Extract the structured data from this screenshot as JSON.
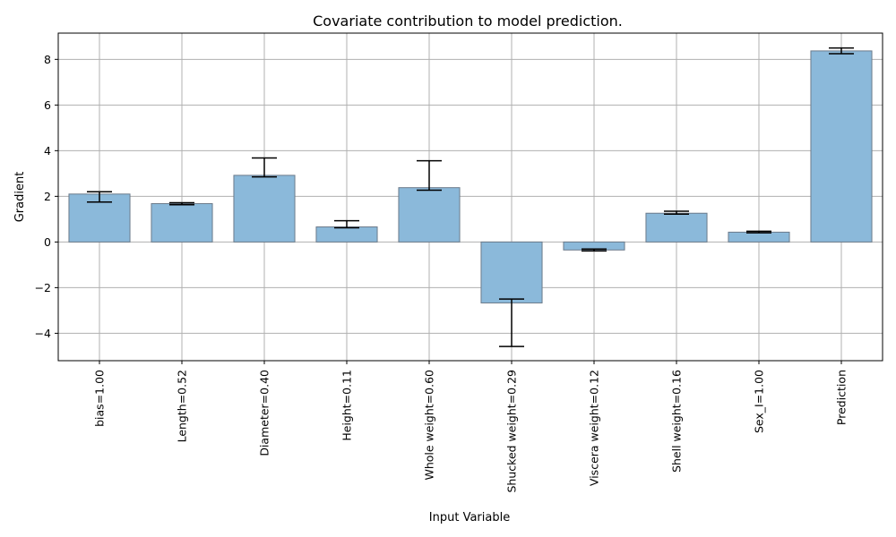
{
  "chart_data": {
    "type": "bar",
    "title": "Covariate contribution to model prediction.",
    "xlabel": "Input Variable",
    "ylabel": "Gradient",
    "categories": [
      "bias=1.00",
      "Length=0.52",
      "Diameter=0.40",
      "Height=0.11",
      "Whole weight=0.60",
      "Shucked weight=0.29",
      "Viscera weight=0.12",
      "Shell weight=0.16",
      "Sex_I=1.00",
      "Prediction"
    ],
    "values": [
      2.1,
      1.68,
      2.92,
      0.66,
      2.38,
      -2.67,
      -0.35,
      1.26,
      0.43,
      8.37
    ],
    "error_low": [
      1.75,
      1.63,
      2.85,
      0.62,
      2.27,
      -4.58,
      -0.39,
      1.22,
      0.4,
      8.25
    ],
    "error_high": [
      2.2,
      1.72,
      3.68,
      0.93,
      3.56,
      -2.5,
      -0.31,
      1.35,
      0.47,
      8.5
    ],
    "ylim": [
      -5.2,
      9.15
    ],
    "yticks": [
      -4,
      -2,
      0,
      2,
      4,
      6,
      8
    ],
    "yticklabels": [
      "−4",
      "−2",
      "0",
      "2",
      "4",
      "6",
      "8"
    ],
    "grid": true,
    "bar_color": "#8bb9da",
    "bar_edge_color": "#6b7a8a",
    "error_color": "#000000",
    "grid_color": "#b0b0b0"
  }
}
